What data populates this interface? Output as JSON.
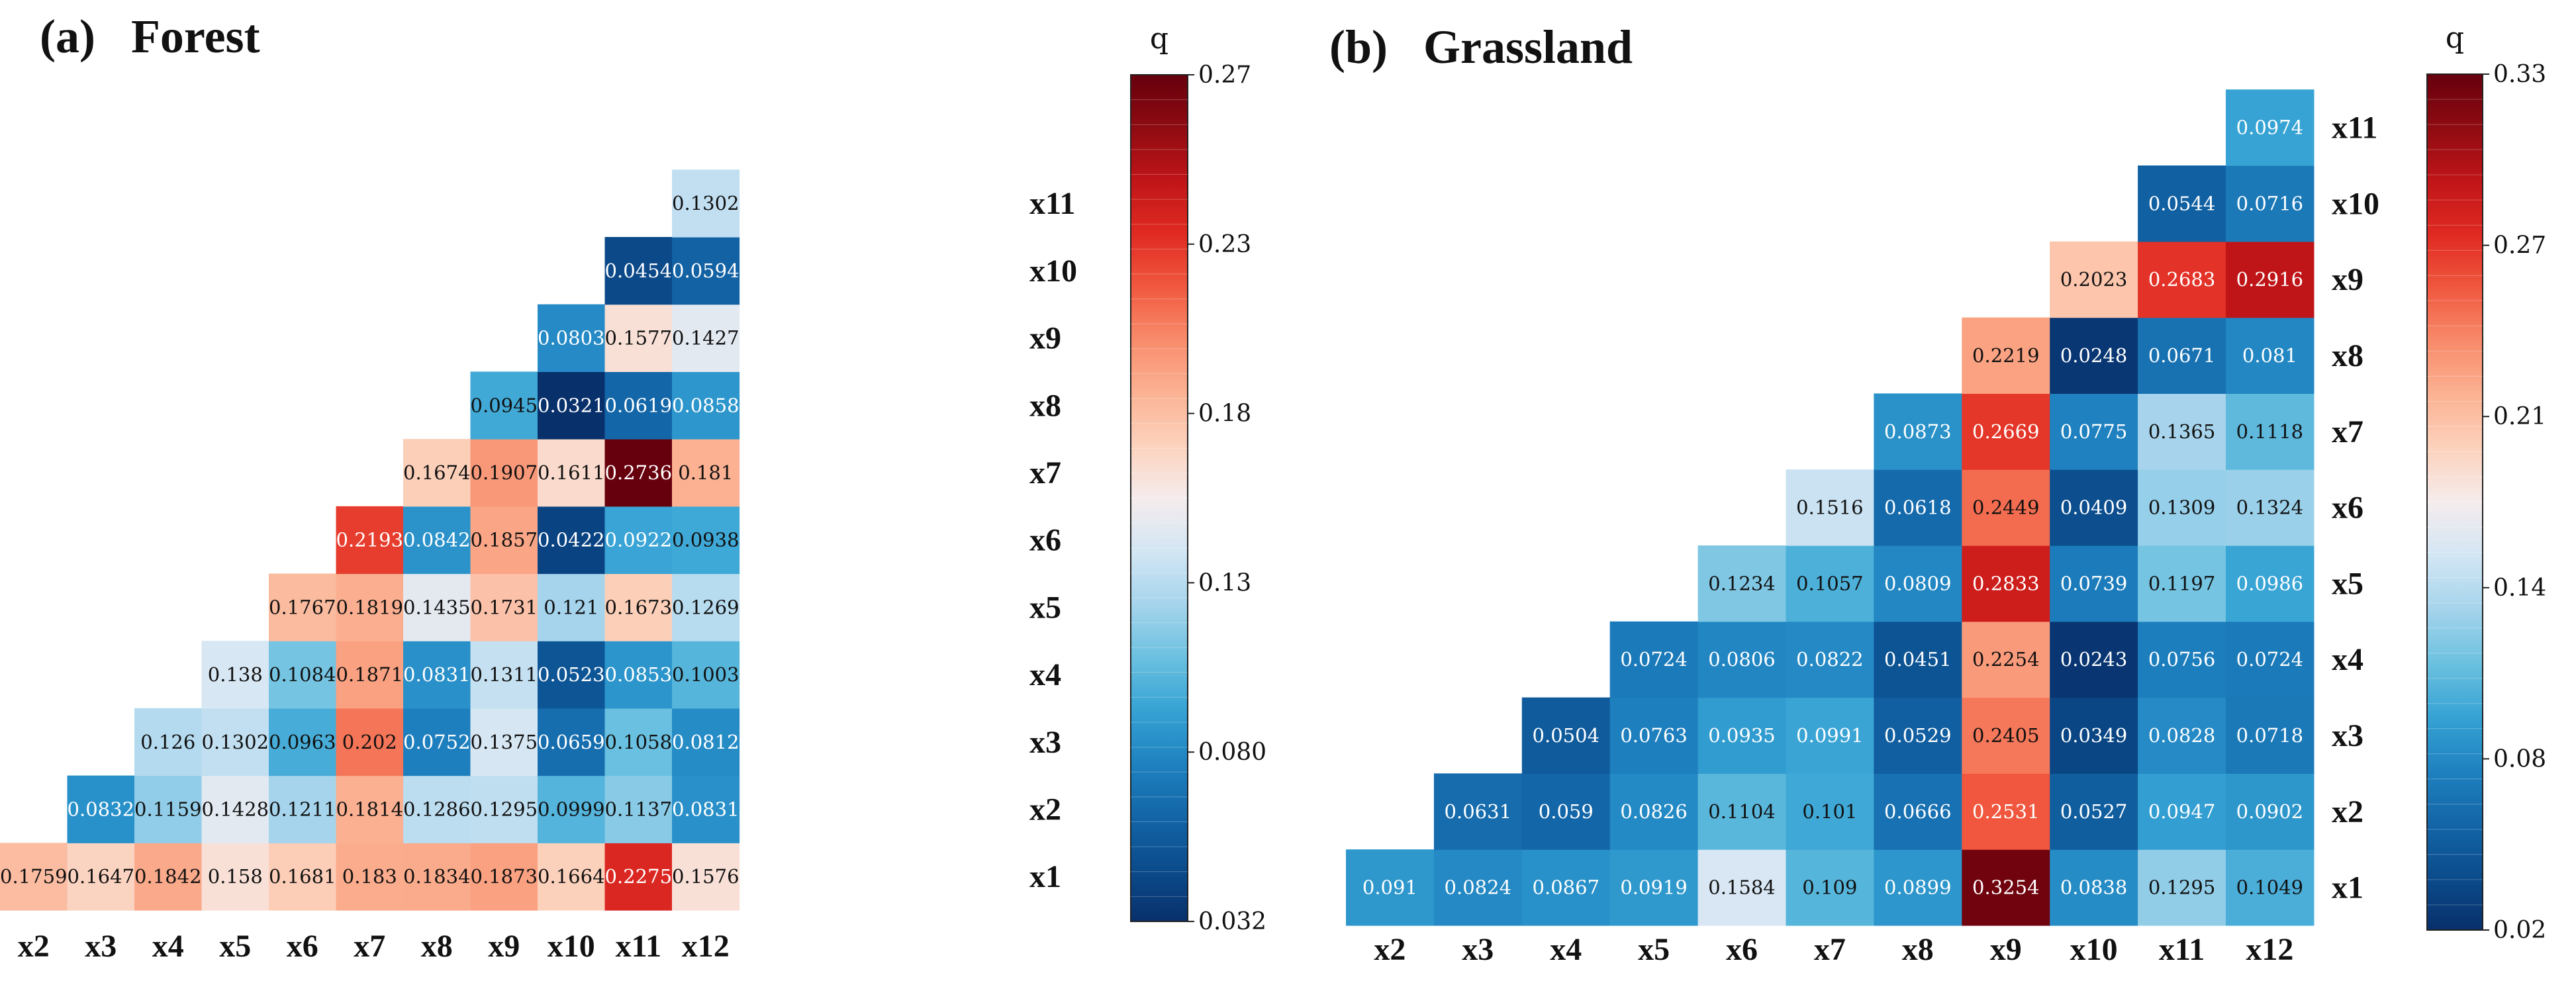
{
  "panels": [
    {
      "label": "(a)",
      "name": "Forest"
    },
    {
      "label": "(b)",
      "name": "Grassland"
    }
  ],
  "chart_data": [
    {
      "type": "heatmap",
      "title": "Forest",
      "panel_label": "(a)",
      "x_categories": [
        "x2",
        "x3",
        "x4",
        "x5",
        "x6",
        "x7",
        "x8",
        "x9",
        "x10",
        "x11",
        "x12"
      ],
      "y_categories": [
        "x1",
        "x2",
        "x3",
        "x4",
        "x5",
        "x6",
        "x7",
        "x8",
        "x9",
        "x10",
        "x11"
      ],
      "values": [
        [
          "0.1759",
          "0.1647",
          "0.1842",
          "0.158",
          "0.1681",
          "0.183",
          "0.1834",
          "0.1873",
          "0.1664",
          "0.2275",
          "0.1576"
        ],
        [
          null,
          "0.0832",
          "0.1159",
          "0.1428",
          "0.1211",
          "0.1814",
          "0.1286",
          "0.1295",
          "0.0999",
          "0.1137",
          "0.0831"
        ],
        [
          null,
          null,
          "0.126",
          "0.1302",
          "0.0963",
          "0.202",
          "0.0752",
          "0.1375",
          "0.0659",
          "0.1058",
          "0.0812"
        ],
        [
          null,
          null,
          null,
          "0.138",
          "0.1084",
          "0.1871",
          "0.0831",
          "0.1311",
          "0.0523",
          "0.0853",
          "0.1003"
        ],
        [
          null,
          null,
          null,
          null,
          "0.1767",
          "0.1819",
          "0.1435",
          "0.1731",
          "0.121",
          "0.1673",
          "0.1269"
        ],
        [
          null,
          null,
          null,
          null,
          null,
          "0.2193",
          "0.0842",
          "0.1857",
          "0.0422",
          "0.0922",
          "0.0938"
        ],
        [
          null,
          null,
          null,
          null,
          null,
          null,
          "0.1674",
          "0.1907",
          "0.1611",
          "0.2736",
          "0.181"
        ],
        [
          null,
          null,
          null,
          null,
          null,
          null,
          null,
          "0.0945",
          "0.0321",
          "0.0619",
          "0.0858"
        ],
        [
          null,
          null,
          null,
          null,
          null,
          null,
          null,
          null,
          "0.0803",
          "0.1577",
          "0.1427"
        ],
        [
          null,
          null,
          null,
          null,
          null,
          null,
          null,
          null,
          null,
          "0.0454",
          "0.0594"
        ],
        [
          null,
          null,
          null,
          null,
          null,
          null,
          null,
          null,
          null,
          null,
          "0.1302"
        ]
      ],
      "colorbar": {
        "title": "q",
        "min": 0.032,
        "max": 0.27,
        "ticks": [
          "0.27",
          "0.23",
          "0.18",
          "0.13",
          "0.080",
          "0.032"
        ]
      }
    },
    {
      "type": "heatmap",
      "title": "Grassland",
      "panel_label": "(b)",
      "x_categories": [
        "x2",
        "x3",
        "x4",
        "x5",
        "x6",
        "x7",
        "x8",
        "x9",
        "x10",
        "x11",
        "x12"
      ],
      "y_categories": [
        "x1",
        "x2",
        "x3",
        "x4",
        "x5",
        "x6",
        "x7",
        "x8",
        "x9",
        "x10",
        "x11"
      ],
      "values": [
        [
          "0.091",
          "0.0824",
          "0.0867",
          "0.0919",
          "0.1584",
          "0.109",
          "0.0899",
          "0.3254",
          "0.0838",
          "0.1295",
          "0.1049"
        ],
        [
          null,
          "0.0631",
          "0.059",
          "0.0826",
          "0.1104",
          "0.101",
          "0.0666",
          "0.2531",
          "0.0527",
          "0.0947",
          "0.0902"
        ],
        [
          null,
          null,
          "0.0504",
          "0.0763",
          "0.0935",
          "0.0991",
          "0.0529",
          "0.2405",
          "0.0349",
          "0.0828",
          "0.0718"
        ],
        [
          null,
          null,
          null,
          "0.0724",
          "0.0806",
          "0.0822",
          "0.0451",
          "0.2254",
          "0.0243",
          "0.0756",
          "0.0724"
        ],
        [
          null,
          null,
          null,
          null,
          "0.1234",
          "0.1057",
          "0.0809",
          "0.2833",
          "0.0739",
          "0.1197",
          "0.0986"
        ],
        [
          null,
          null,
          null,
          null,
          null,
          "0.1516",
          "0.0618",
          "0.2449",
          "0.0409",
          "0.1309",
          "0.1324"
        ],
        [
          null,
          null,
          null,
          null,
          null,
          null,
          "0.0873",
          "0.2669",
          "0.0775",
          "0.1365",
          "0.1118"
        ],
        [
          null,
          null,
          null,
          null,
          null,
          null,
          null,
          "0.2219",
          "0.0248",
          "0.0671",
          "0.081"
        ],
        [
          null,
          null,
          null,
          null,
          null,
          null,
          null,
          null,
          "0.2023",
          "0.2683",
          "0.2916"
        ],
        [
          null,
          null,
          null,
          null,
          null,
          null,
          null,
          null,
          null,
          "0.0544",
          "0.0716"
        ],
        [
          null,
          null,
          null,
          null,
          null,
          null,
          null,
          null,
          null,
          null,
          "0.0974"
        ]
      ],
      "colorbar": {
        "title": "q",
        "min": 0.02,
        "max": 0.33,
        "ticks": [
          "0.33",
          "0.27",
          "0.21",
          "0.14",
          "0.08",
          "0.02"
        ]
      }
    }
  ],
  "colormap": [
    "#08306b",
    "#0b4c8c",
    "#1366a8",
    "#1f82c0",
    "#36a3d4",
    "#6cc1e0",
    "#a6d4ec",
    "#d3e6f4",
    "#f5ecec",
    "#fcd2bd",
    "#fbb293",
    "#f88b6b",
    "#f0583f",
    "#e02a22",
    "#c01518",
    "#8e0b12",
    "#67000d"
  ]
}
